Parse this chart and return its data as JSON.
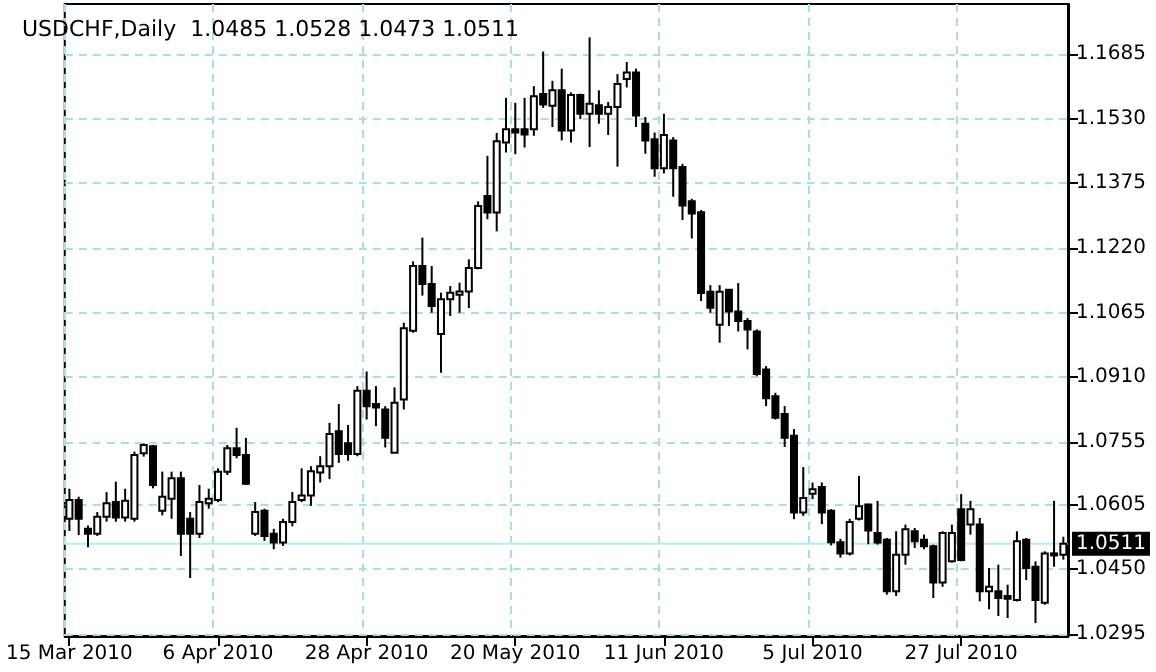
{
  "chart_data": {
    "type": "candlestick",
    "title": "USDCHF,Daily  1.0485 1.0528 1.0473 1.0511",
    "categories": [
      "15 Mar 2010",
      null,
      null,
      null,
      null,
      null,
      null,
      null,
      null,
      null,
      null,
      null,
      null,
      null,
      null,
      null,
      "6 Apr 2010",
      null,
      null,
      null,
      null,
      null,
      null,
      null,
      null,
      null,
      null,
      null,
      null,
      null,
      null,
      null,
      "28 Apr 2010",
      null,
      null,
      null,
      null,
      null,
      null,
      null,
      null,
      null,
      null,
      null,
      null,
      null,
      null,
      null,
      "20 May 2010",
      null,
      null,
      null,
      null,
      null,
      null,
      null,
      null,
      null,
      null,
      null,
      null,
      null,
      null,
      null,
      "11 Jun 2010",
      null,
      null,
      null,
      null,
      null,
      null,
      null,
      null,
      null,
      null,
      null,
      null,
      null,
      null,
      null,
      "5 Jul 2010",
      null,
      null,
      null,
      null,
      null,
      null,
      null,
      null,
      null,
      null,
      null,
      null,
      null,
      null,
      null,
      "27 Jul 2010",
      null,
      null,
      null,
      null,
      null,
      null,
      null,
      null,
      null,
      null,
      null
    ],
    "ohlc": [
      [
        1.0571,
        1.0643,
        1.0542,
        1.0616
      ],
      [
        1.0616,
        1.0624,
        1.0532,
        1.0571
      ],
      [
        1.0547,
        1.0555,
        1.0503,
        1.0535
      ],
      [
        1.0535,
        1.0587,
        1.053,
        1.0576
      ],
      [
        1.0576,
        1.0635,
        1.0564,
        1.0608
      ],
      [
        1.0611,
        1.066,
        1.0564,
        1.0574
      ],
      [
        1.0574,
        1.0643,
        1.0564,
        1.0614
      ],
      [
        1.0571,
        1.0732,
        1.0564,
        1.0724
      ],
      [
        1.0728,
        1.0752,
        1.072,
        1.0748
      ],
      [
        1.0745,
        1.0748,
        1.0644,
        1.0652
      ],
      [
        1.059,
        1.0684,
        1.0579,
        1.0624
      ],
      [
        1.0619,
        1.0684,
        1.0571,
        1.0668
      ],
      [
        1.0668,
        1.0684,
        1.0482,
        1.0535
      ],
      [
        1.0571,
        1.0587,
        1.0429,
        1.0535
      ],
      [
        1.0535,
        1.0652,
        1.0525,
        1.0611
      ],
      [
        1.0608,
        1.0643,
        1.0595,
        1.0619
      ],
      [
        1.0616,
        1.0692,
        1.0611,
        1.0684
      ],
      [
        1.0684,
        1.0748,
        1.0676,
        1.074
      ],
      [
        1.074,
        1.0789,
        1.0716,
        1.0724
      ],
      [
        1.0724,
        1.0765,
        1.0652,
        1.0655
      ],
      [
        1.0535,
        1.0611,
        1.053,
        1.0587
      ],
      [
        1.059,
        1.0595,
        1.0518,
        1.053
      ],
      [
        1.0535,
        1.0547,
        1.0498,
        1.0514
      ],
      [
        1.0514,
        1.0571,
        1.0506,
        1.0563
      ],
      [
        1.0563,
        1.0635,
        1.0553,
        1.0611
      ],
      [
        1.0616,
        1.0692,
        1.0611,
        1.0627
      ],
      [
        1.0627,
        1.0697,
        1.0602,
        1.0685
      ],
      [
        1.0682,
        1.0721,
        1.0658,
        1.0697
      ],
      [
        1.0697,
        1.0801,
        1.0666,
        1.0774
      ],
      [
        1.0781,
        1.0846,
        1.0705,
        1.0726
      ],
      [
        1.0752,
        1.0796,
        1.071,
        1.0726
      ],
      [
        1.0726,
        1.0889,
        1.0721,
        1.0878
      ],
      [
        1.0878,
        1.0924,
        1.0809,
        1.0841
      ],
      [
        1.0846,
        1.0889,
        1.0793,
        1.0838
      ],
      [
        1.0833,
        1.0841,
        1.0742,
        1.0765
      ],
      [
        1.0729,
        1.0886,
        1.0729,
        1.0849
      ],
      [
        1.0857,
        1.1041,
        1.0833,
        1.1028
      ],
      [
        1.1022,
        1.1188,
        1.1017,
        1.1177
      ],
      [
        1.1177,
        1.1245,
        1.1106,
        1.1134
      ],
      [
        1.1134,
        1.1177,
        1.1065,
        1.1081
      ],
      [
        1.1014,
        1.1113,
        1.0921,
        1.1097
      ],
      [
        1.1097,
        1.1129,
        1.1057,
        1.1113
      ],
      [
        1.1108,
        1.1137,
        1.1065,
        1.1116
      ],
      [
        1.1116,
        1.1193,
        1.1076,
        1.1172
      ],
      [
        1.1172,
        1.1332,
        1.1169,
        1.1321
      ],
      [
        1.1345,
        1.1441,
        1.1289,
        1.1305
      ],
      [
        1.1305,
        1.1496,
        1.126,
        1.1476
      ],
      [
        1.1473,
        1.158,
        1.1449,
        1.1505
      ],
      [
        1.1505,
        1.1568,
        1.1445,
        1.1497
      ],
      [
        1.1505,
        1.158,
        1.1461,
        1.1492
      ],
      [
        1.1505,
        1.1608,
        1.1489,
        1.1584
      ],
      [
        1.1589,
        1.1691,
        1.1556,
        1.1564
      ],
      [
        1.1561,
        1.1621,
        1.151,
        1.1598
      ],
      [
        1.1598,
        1.165,
        1.1478,
        1.1502
      ],
      [
        1.1502,
        1.1593,
        1.1473,
        1.1587
      ],
      [
        1.1587,
        1.159,
        1.1529,
        1.1542
      ],
      [
        1.1542,
        1.1725,
        1.1462,
        1.1566
      ],
      [
        1.1562,
        1.1598,
        1.1518,
        1.1542
      ],
      [
        1.1542,
        1.157,
        1.1491,
        1.1558
      ],
      [
        1.1558,
        1.1637,
        1.1415,
        1.1613
      ],
      [
        1.1625,
        1.1666,
        1.1605,
        1.1641
      ],
      [
        1.1641,
        1.165,
        1.151,
        1.1538
      ],
      [
        1.1518,
        1.1534,
        1.1446,
        1.1478
      ],
      [
        1.1481,
        1.1497,
        1.1391,
        1.1411
      ],
      [
        1.1411,
        1.1542,
        1.1399,
        1.1491
      ],
      [
        1.1478,
        1.1486,
        1.1343,
        1.1411
      ],
      [
        1.1414,
        1.1422,
        1.1287,
        1.1322
      ],
      [
        1.1332,
        1.1338,
        1.1243,
        1.1303
      ],
      [
        1.1306,
        1.1311,
        1.1093,
        1.1112
      ],
      [
        1.1115,
        1.1131,
        1.1065,
        1.1077
      ],
      [
        1.1036,
        1.1131,
        1.0993,
        1.1115
      ],
      [
        1.112,
        1.112,
        1.1033,
        1.1068
      ],
      [
        1.1068,
        1.1136,
        1.102,
        1.1045
      ],
      [
        1.1045,
        1.1052,
        1.0977,
        1.1025
      ],
      [
        1.102,
        1.1025,
        1.0913,
        1.0918
      ],
      [
        1.0929,
        1.0937,
        1.0841,
        1.086
      ],
      [
        1.0865,
        1.0873,
        1.0809,
        1.0813
      ],
      [
        1.0822,
        1.0841,
        1.0743,
        1.0765
      ],
      [
        1.077,
        1.0786,
        1.057,
        1.0586
      ],
      [
        1.0586,
        1.0695,
        1.0578,
        1.0621
      ],
      [
        1.0631,
        1.0658,
        1.0618,
        1.0642
      ],
      [
        1.0647,
        1.0658,
        1.0558,
        1.0586
      ],
      [
        1.059,
        1.0594,
        1.0507,
        1.0515
      ],
      [
        1.0515,
        1.0523,
        1.0478,
        1.0488
      ],
      [
        1.0488,
        1.0571,
        1.0483,
        1.0563
      ],
      [
        1.0571,
        1.0674,
        1.0567,
        1.0601
      ],
      [
        1.0605,
        1.0607,
        1.051,
        1.0543
      ],
      [
        1.0537,
        1.0614,
        1.0509,
        1.0514
      ],
      [
        1.0521,
        1.0525,
        1.0389,
        1.0397
      ],
      [
        1.0397,
        1.0541,
        1.0386,
        1.0485
      ],
      [
        1.0485,
        1.0557,
        1.0461,
        1.0546
      ],
      [
        1.0541,
        1.0549,
        1.0501,
        1.0517
      ],
      [
        1.0521,
        1.0533,
        1.0498,
        1.0505
      ],
      [
        1.0505,
        1.0509,
        1.0381,
        1.0418
      ],
      [
        1.0418,
        1.0541,
        1.0408,
        1.0537
      ],
      [
        1.0469,
        1.0557,
        1.0466,
        1.0537
      ],
      [
        1.0594,
        1.063,
        1.0469,
        1.0472
      ],
      [
        1.0557,
        1.0614,
        1.0533,
        1.0594
      ],
      [
        1.0557,
        1.0573,
        1.0373,
        1.0397
      ],
      [
        1.0397,
        1.0453,
        1.0354,
        1.0408
      ],
      [
        1.0397,
        1.0461,
        1.0338,
        1.0381
      ],
      [
        1.0386,
        1.0413,
        1.0333,
        1.0379
      ],
      [
        1.0376,
        1.0541,
        1.0373,
        1.0517
      ],
      [
        1.0521,
        1.0525,
        1.0424,
        1.0453
      ],
      [
        1.0456,
        1.0469,
        1.0321,
        1.0376
      ],
      [
        1.037,
        1.0493,
        1.0365,
        1.0488
      ],
      [
        1.0488,
        1.0614,
        1.0456,
        1.0485
      ],
      [
        1.0485,
        1.0528,
        1.0473,
        1.0511
      ]
    ],
    "ylim": [
      1.029,
      1.1805
    ],
    "yticks": [
      {
        "value": 1.1685,
        "label": "1.1685"
      },
      {
        "value": 1.153,
        "label": "1.1530"
      },
      {
        "value": 1.1375,
        "label": "1.1375"
      },
      {
        "value": 1.122,
        "label": "1.1220"
      },
      {
        "value": 1.1065,
        "label": "1.1065"
      },
      {
        "value": 1.091,
        "label": "1.0910"
      },
      {
        "value": 1.0755,
        "label": "1.0755"
      },
      {
        "value": 1.0605,
        "label": "1.0605"
      },
      {
        "value": 1.045,
        "label": "1.0450"
      },
      {
        "value": 1.0295,
        "label": "1.0295"
      }
    ],
    "ref_lines": [
      {
        "axis": "y",
        "value": 1.0511,
        "label": "1.0511",
        "color": "#b0f0f0"
      }
    ],
    "grid": true
  }
}
